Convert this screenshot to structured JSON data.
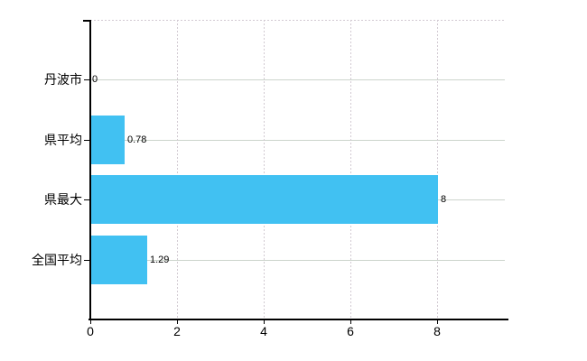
{
  "chart_data": {
    "type": "bar",
    "orientation": "horizontal",
    "title": "",
    "xlabel": "",
    "ylabel": "",
    "categories": [
      "丹波市",
      "県平均",
      "県最大",
      "全国平均"
    ],
    "values": [
      0,
      0.78,
      8,
      1.29
    ],
    "value_labels": [
      "0",
      "0.78",
      "8",
      "1.29"
    ],
    "x_ticks": [
      0,
      2,
      4,
      6,
      8
    ],
    "x_tick_labels": [
      "0",
      "2",
      "4",
      "6",
      "8"
    ],
    "xlim": [
      0,
      9.56
    ],
    "legend": "none",
    "grid": {
      "horizontal": "solid",
      "vertical": "dashed",
      "top_border": "dashed"
    },
    "colors": {
      "bar": "#41c1f2",
      "h_grid": "#ccd4cc",
      "v_grid": "#d2cad2",
      "top_border": "#d2cad2",
      "axis": "#000000",
      "text": "#000000",
      "background": "#ffffff"
    }
  }
}
